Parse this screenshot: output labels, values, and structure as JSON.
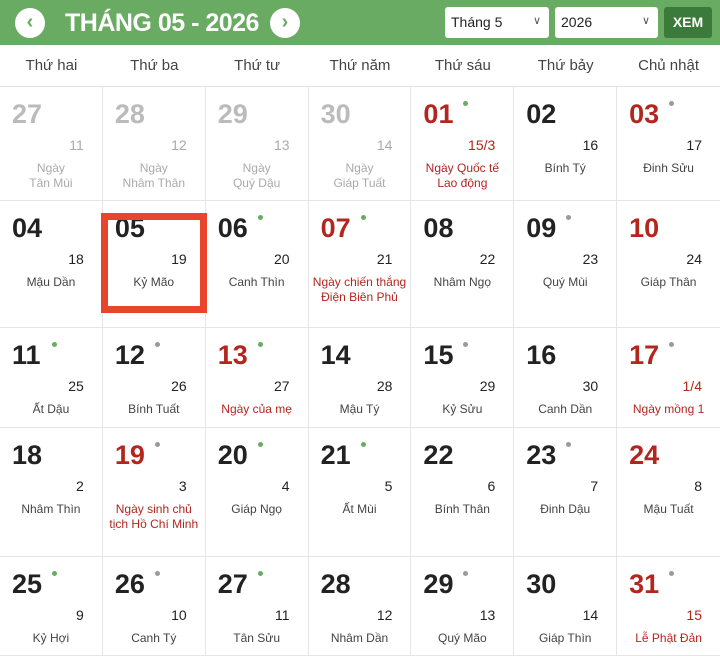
{
  "header": {
    "title": "THÁNG 05 - 2026",
    "prev_icon": "chevron-left-icon",
    "next_icon": "chevron-right-icon",
    "month_select": "Tháng 5",
    "year_select": "2026",
    "view_button": "XEM"
  },
  "weekdays": [
    "Thứ hai",
    "Thứ ba",
    "Thứ tư",
    "Thứ năm",
    "Thứ sáu",
    "Thứ bảy",
    "Chủ nhật"
  ],
  "colors": {
    "header": "#6aab63",
    "button": "#3c7a3b",
    "holiday": "#b3261e",
    "selected": "#e8452c",
    "dot_green": "#6aab63",
    "dot_grey": "#9a9a9a"
  },
  "days": [
    {
      "d": "27",
      "l": "11",
      "n": "Ngày\nTân Mùi",
      "other": true
    },
    {
      "d": "28",
      "l": "12",
      "n": "Ngày\nNhâm Thân",
      "other": true
    },
    {
      "d": "29",
      "l": "13",
      "n": "Ngày\nQuý Dậu",
      "other": true
    },
    {
      "d": "30",
      "l": "14",
      "n": "Ngày\nGiáp Tuất",
      "other": true
    },
    {
      "d": "01",
      "l": "15/3",
      "n": "Ngày Quốc tế Lao động",
      "red": true,
      "dot": "green",
      "lred": true,
      "nred": true
    },
    {
      "d": "02",
      "l": "16",
      "n": "Bính Tý"
    },
    {
      "d": "03",
      "l": "17",
      "n": "Đinh Sửu",
      "red": true,
      "dot": "grey"
    },
    {
      "d": "04",
      "l": "18",
      "n": "Mậu Dần"
    },
    {
      "d": "05",
      "l": "19",
      "n": "Kỷ Mão",
      "dot": "grey",
      "selected": true
    },
    {
      "d": "06",
      "l": "20",
      "n": "Canh Thìn",
      "dot": "green"
    },
    {
      "d": "07",
      "l": "21",
      "n": "Ngày chiến thắng Điện Biên Phủ",
      "red": true,
      "dot": "green",
      "nred": true
    },
    {
      "d": "08",
      "l": "22",
      "n": "Nhâm Ngọ"
    },
    {
      "d": "09",
      "l": "23",
      "n": "Quý Mùi",
      "dot": "grey"
    },
    {
      "d": "10",
      "l": "24",
      "n": "Giáp Thân",
      "red": true
    },
    {
      "d": "11",
      "l": "25",
      "n": "Ất Dậu",
      "dot": "green"
    },
    {
      "d": "12",
      "l": "26",
      "n": "Bính Tuất",
      "dot": "grey"
    },
    {
      "d": "13",
      "l": "27",
      "n": "Ngày của mẹ",
      "red": true,
      "dot": "green",
      "nred": true
    },
    {
      "d": "14",
      "l": "28",
      "n": "Mậu Tý"
    },
    {
      "d": "15",
      "l": "29",
      "n": "Kỷ Sửu",
      "dot": "grey"
    },
    {
      "d": "16",
      "l": "30",
      "n": "Canh Dần"
    },
    {
      "d": "17",
      "l": "1/4",
      "n": "Ngày mồng 1",
      "red": true,
      "dot": "grey",
      "lred": true,
      "nred": true
    },
    {
      "d": "18",
      "l": "2",
      "n": "Nhâm Thìn"
    },
    {
      "d": "19",
      "l": "3",
      "n": "Ngày sinh chủ tịch Hồ Chí Minh",
      "red": true,
      "dot": "grey",
      "nred": true
    },
    {
      "d": "20",
      "l": "4",
      "n": "Giáp Ngọ",
      "dot": "green"
    },
    {
      "d": "21",
      "l": "5",
      "n": "Ất Mùi",
      "dot": "green"
    },
    {
      "d": "22",
      "l": "6",
      "n": "Bính Thân"
    },
    {
      "d": "23",
      "l": "7",
      "n": "Đinh Dậu",
      "dot": "grey"
    },
    {
      "d": "24",
      "l": "8",
      "n": "Mậu Tuất",
      "red": true
    },
    {
      "d": "25",
      "l": "9",
      "n": "Kỷ Hợi",
      "dot": "green"
    },
    {
      "d": "26",
      "l": "10",
      "n": "Canh Tý",
      "dot": "grey"
    },
    {
      "d": "27",
      "l": "11",
      "n": "Tân Sửu",
      "dot": "green"
    },
    {
      "d": "28",
      "l": "12",
      "n": "Nhâm Dần"
    },
    {
      "d": "29",
      "l": "13",
      "n": "Quý Mão",
      "dot": "grey"
    },
    {
      "d": "30",
      "l": "14",
      "n": "Giáp Thìn"
    },
    {
      "d": "31",
      "l": "15",
      "n": "Lễ Phật Đản",
      "red": true,
      "dot": "grey",
      "lred": true,
      "nred": true
    }
  ]
}
